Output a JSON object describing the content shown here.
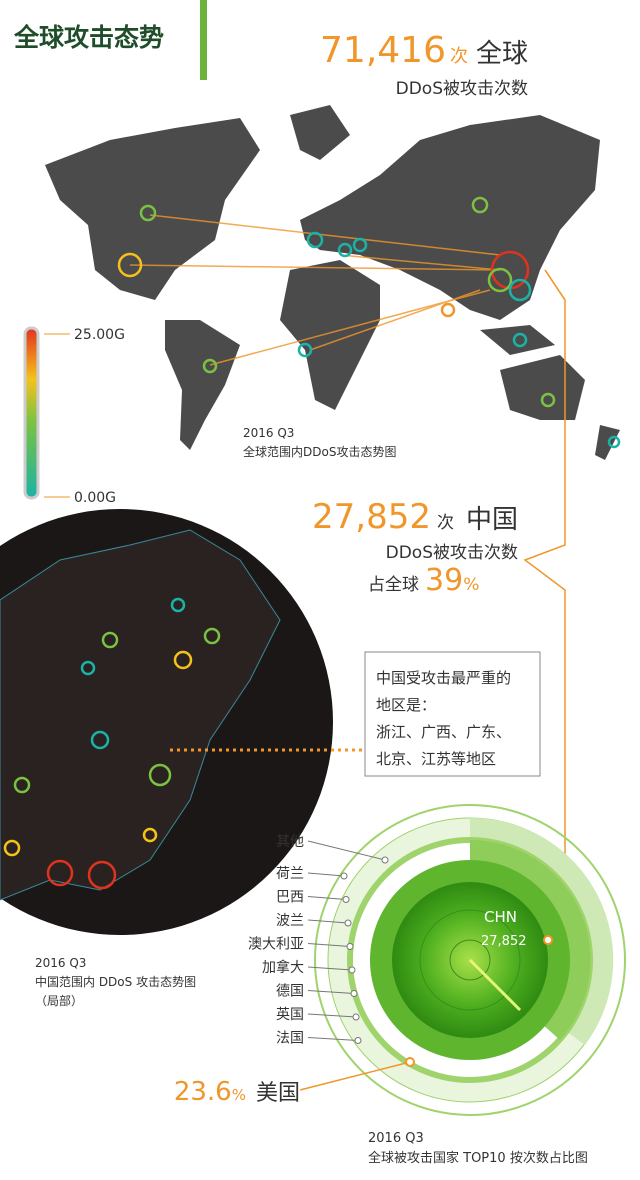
{
  "header": {
    "title": "全球攻击态势"
  },
  "global": {
    "count": "71,416",
    "unit": "次",
    "scope": "全球",
    "caption": "DDoS被攻击次数"
  },
  "world_map": {
    "legend_max": "25.00G",
    "legend_min": "0.00G",
    "caption_period": "2016 Q3",
    "caption": "全球范围内DDoS攻击态势图"
  },
  "china": {
    "count": "27,852",
    "unit": "次",
    "scope": "中国",
    "line1": "DDoS被攻击次数",
    "line2": "占全球",
    "share": "39",
    "share_unit": "%"
  },
  "callout": {
    "lines": [
      "中国受攻击最严重的",
      "地区是：",
      "浙江、广西、广东、",
      "北京、江苏等地区"
    ]
  },
  "china_map": {
    "caption_period": "2016 Q3",
    "caption": "中国范围内 DDoS 攻击态势图",
    "note": "（局部）"
  },
  "ranking": {
    "countries": [
      "其他",
      "荷兰",
      "巴西",
      "波兰",
      "澳大利亚",
      "加拿大",
      "德国",
      "英国",
      "法国"
    ],
    "top": {
      "code": "CHN",
      "count": "27,852"
    },
    "usa": {
      "share": "23.6",
      "unit": "%",
      "name": "美国"
    },
    "caption_period": "2016 Q3",
    "caption": "全球被攻击国家 TOP10 按次数占比图"
  }
}
